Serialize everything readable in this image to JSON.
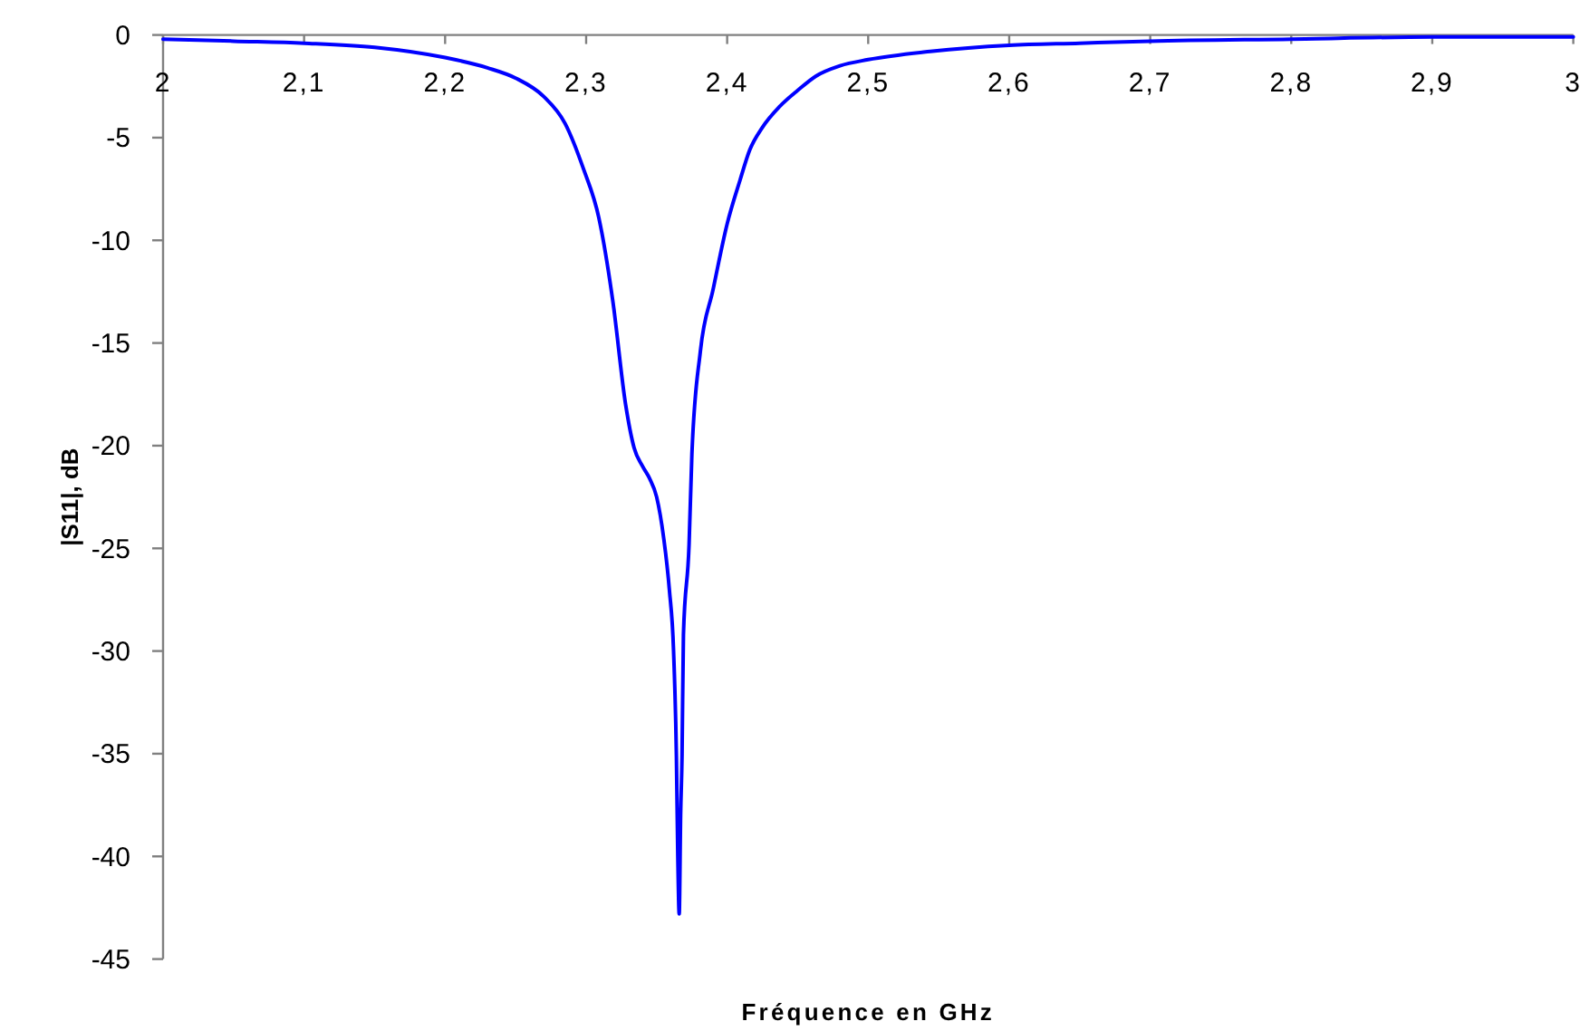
{
  "chart_data": {
    "type": "line",
    "xlabel": "Fréquence en GHz",
    "ylabel": "|S11|, dB",
    "x": [
      2.0,
      2.05,
      2.1,
      2.15,
      2.2,
      2.23,
      2.25,
      2.27,
      2.285,
      2.298,
      2.309,
      2.319,
      2.328,
      2.334,
      2.34,
      2.345,
      2.35,
      2.355,
      2.359,
      2.362,
      2.364,
      2.365,
      2.366,
      2.367,
      2.368,
      2.369,
      2.373,
      2.375,
      2.381,
      2.39,
      2.4,
      2.409,
      2.416,
      2.425,
      2.437,
      2.45,
      2.463,
      2.48,
      2.5,
      2.544,
      2.6,
      2.65,
      2.7,
      2.8,
      2.9,
      3.0
    ],
    "series": [
      {
        "color": "#0000ff",
        "values": [
          -0.2,
          -0.3,
          -0.4,
          -0.6,
          -1.1,
          -1.6,
          -2.1,
          -3.0,
          -4.3,
          -6.5,
          -8.9,
          -13.0,
          -18.0,
          -20.1,
          -21.0,
          -21.6,
          -22.5,
          -24.5,
          -27.0,
          -30.0,
          -35.1,
          -40.0,
          -42.8,
          -38.0,
          -35.1,
          -29.2,
          -24.8,
          -20.4,
          -15.4,
          -12.4,
          -9.2,
          -7.1,
          -5.6,
          -4.5,
          -3.5,
          -2.7,
          -2.0,
          -1.5,
          -1.2,
          -0.8,
          -0.5,
          -0.4,
          -0.3,
          -0.2,
          -0.1,
          -0.1
        ]
      }
    ],
    "xlim": [
      2,
      3
    ],
    "xticks": [
      2,
      {
        "value": 2.1,
        "label": "2,1"
      },
      {
        "value": 2.2,
        "label": "2,2"
      },
      {
        "value": 2.3,
        "label": "2,3"
      },
      {
        "value": 2.4,
        "label": "2,4"
      },
      {
        "value": 2.5,
        "label": "2,5"
      },
      {
        "value": 2.6,
        "label": "2,6"
      },
      {
        "value": 2.7,
        "label": "2,7"
      },
      {
        "value": 2.8,
        "label": "2,8"
      },
      {
        "value": 2.9,
        "label": "2,9"
      },
      3
    ],
    "ylim": [
      -45,
      0
    ],
    "yticks": [
      0,
      -5,
      -10,
      -15,
      -20,
      -25,
      -30,
      -35,
      -40,
      -45
    ]
  }
}
